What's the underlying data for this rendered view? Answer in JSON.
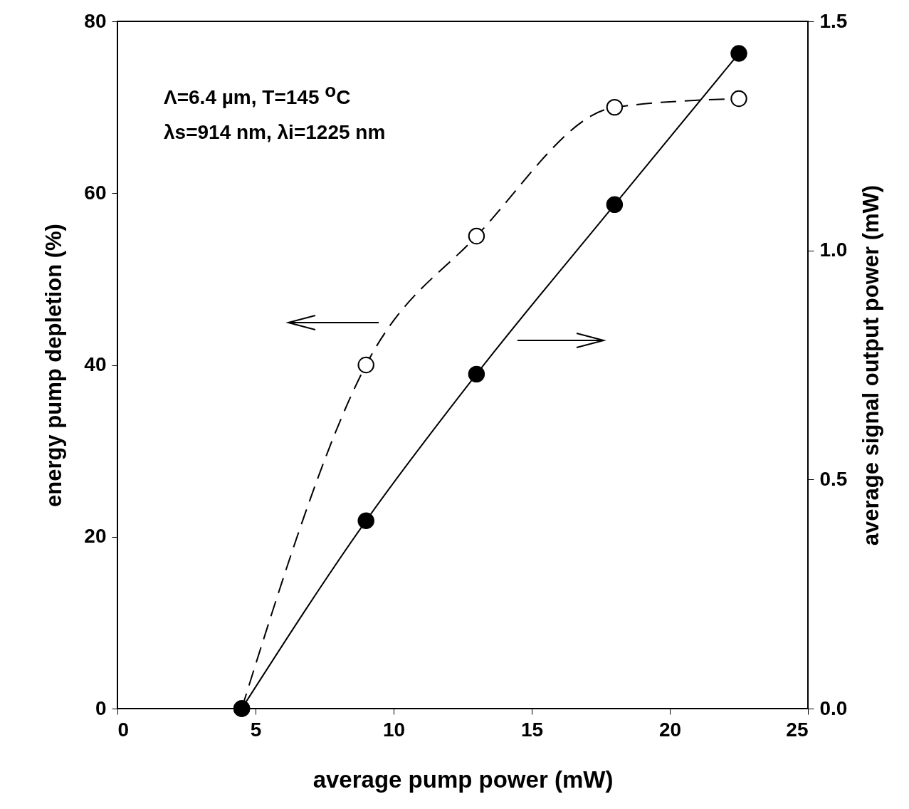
{
  "chart_data": {
    "type": "line",
    "xlabel": "average pump power (mW)",
    "ylabel": "energy pump depletion (%)",
    "y2label": "average signal output power (mW)",
    "x": [
      4.5,
      9,
      13,
      18,
      22.5
    ],
    "xlim": [
      0,
      25
    ],
    "xticks": [
      0,
      5,
      10,
      15,
      20,
      25
    ],
    "ylim": [
      0,
      80
    ],
    "yticks": [
      0,
      20,
      40,
      60,
      80
    ],
    "y2lim": [
      0,
      1.5
    ],
    "y2ticks": [
      {
        "value": 0,
        "label": "0.0"
      },
      {
        "value": 0.5,
        "label": "0.5"
      },
      {
        "value": 1,
        "label": "1.0"
      },
      {
        "value": 1.5,
        "label": "1.5"
      }
    ],
    "marker": "circle",
    "annotations": [
      "Λ=6.4 µm, T=145 $^{o}$C",
      "λs=914 nm, λi=1225 nm"
    ],
    "series": [
      {
        "color": "#000000",
        "line_style": "dashed",
        "values": [
          0,
          40,
          55,
          70,
          71
        ]
      },
      {
        "color": "#000000",
        "line_style": "solid",
        "axis": "y2",
        "values": [
          0,
          0.41,
          0.73,
          1.1,
          1.43
        ]
      }
    ]
  }
}
